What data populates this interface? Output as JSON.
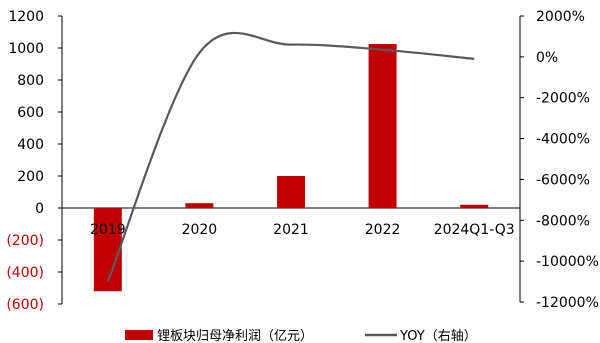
{
  "chart_data": {
    "type": "bar",
    "categories": [
      "2019",
      "2020",
      "2021",
      "2022",
      "2024Q1-Q3"
    ],
    "series": [
      {
        "name": "锂板块归母净利润（亿元）",
        "type": "bar",
        "axis": "left",
        "color": "#c00000",
        "values": [
          -520,
          30,
          200,
          1025,
          20
        ]
      },
      {
        "name": "YOY（右轴）",
        "type": "line",
        "axis": "right",
        "color": "#595959",
        "values": [
          -11000,
          200,
          600,
          350,
          -100
        ]
      }
    ],
    "left_axis": {
      "ylim": [
        -600,
        1200
      ],
      "ticks": [
        1200,
        1000,
        800,
        600,
        400,
        200,
        0,
        -200,
        -400,
        -600
      ],
      "tick_labels": [
        "1200",
        "1000",
        "800",
        "600",
        "400",
        "200",
        "0",
        "(200)",
        "(400)",
        "(600)"
      ],
      "negative_label_color": "#c00000"
    },
    "right_axis": {
      "ylim": [
        -12000,
        2000
      ],
      "ticks": [
        2000,
        0,
        -2000,
        -4000,
        -6000,
        -8000,
        -10000,
        -12000
      ],
      "tick_labels": [
        "2000%",
        "0%",
        "-2000%",
        "-4000%",
        "-6000%",
        "-8000%",
        "-10000%",
        "-12000%"
      ]
    },
    "grid": false,
    "legend_position": "bottom"
  }
}
